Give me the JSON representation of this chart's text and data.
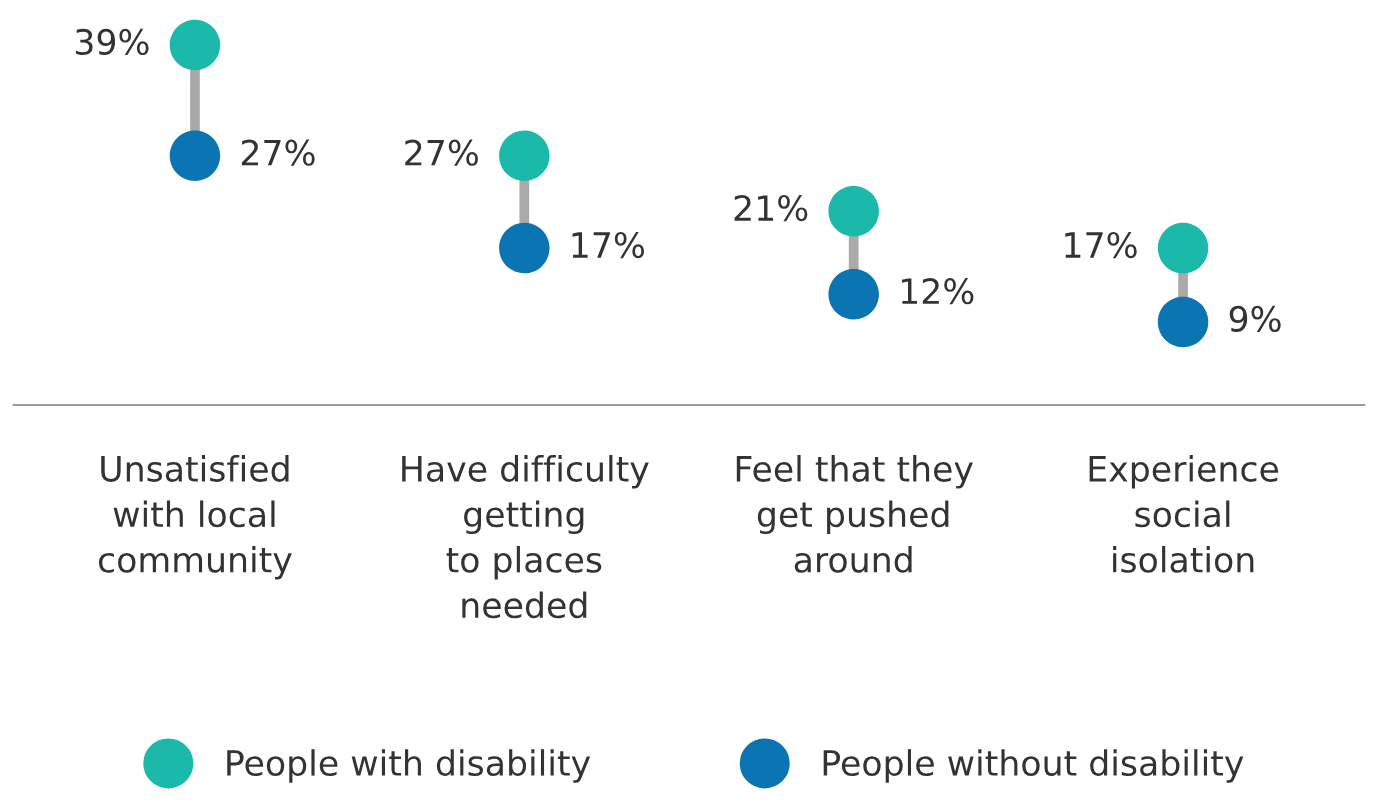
{
  "chart_data": {
    "type": "scatter",
    "categories": [
      "Unsatisfied\nwith local\ncommunity",
      "Have difficulty\ngetting\nto places\nneeded",
      "Feel that they\nget pushed\naround",
      "Experience\nsocial\nisolation"
    ],
    "series": [
      {
        "name": "People with disability",
        "color": "#1ab9a9",
        "values": [
          39,
          27,
          21,
          17
        ],
        "value_labels": [
          "39%",
          "27%",
          "21%",
          "17%"
        ]
      },
      {
        "name": "People without disability",
        "color": "#0b74b3",
        "values": [
          27,
          17,
          12,
          9
        ],
        "value_labels": [
          "27%",
          "17%",
          "12%",
          "9%"
        ]
      }
    ],
    "marker": "circle",
    "legend": "bottom",
    "grid": false,
    "tick_labels": "x"
  }
}
